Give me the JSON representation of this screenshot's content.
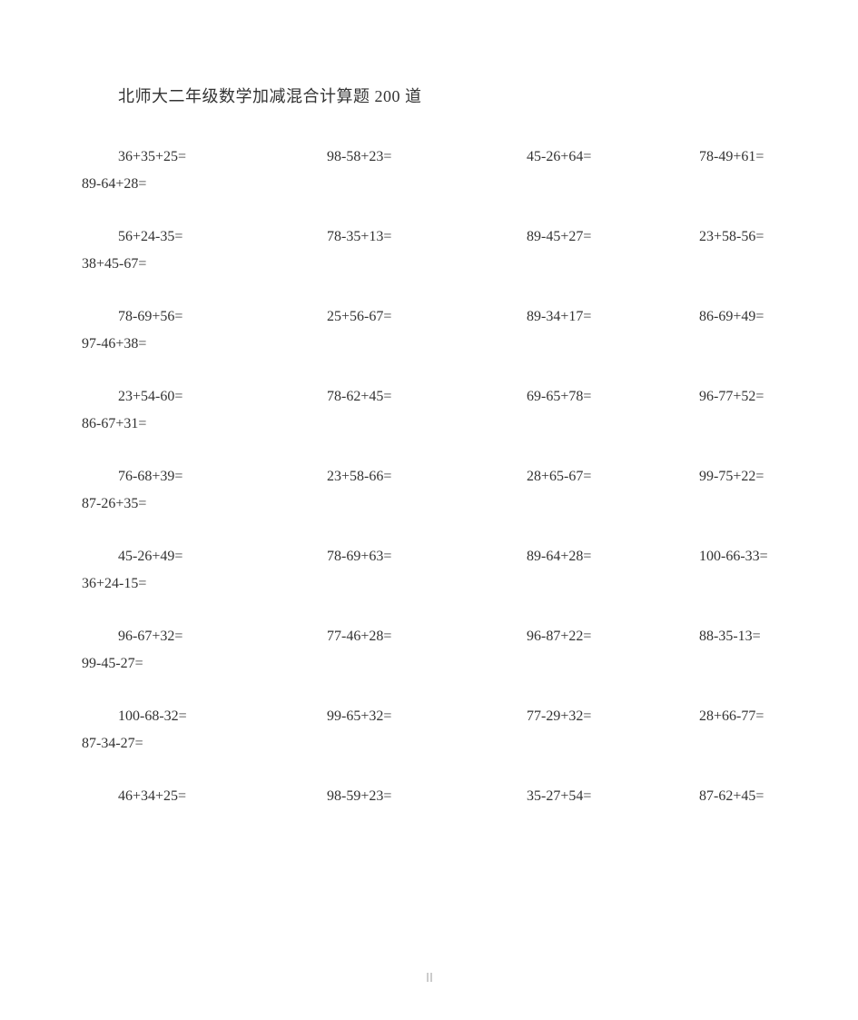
{
  "title": "北师大二年级数学加减混合计算题 200 道",
  "blocks": [
    {
      "c1": "36+35+25=",
      "c2": "98-58+23=",
      "c3": "45-26+64=",
      "c4": "78-49+61=",
      "extra": "89-64+28="
    },
    {
      "c1": "56+24-35=",
      "c2": "78-35+13=",
      "c3": "89-45+27=",
      "c4": "23+58-56=",
      "extra": "38+45-67="
    },
    {
      "c1": "78-69+56=",
      "c2": "25+56-67=",
      "c3": "89-34+17=",
      "c4": "86-69+49=",
      "extra": "97-46+38="
    },
    {
      "c1": "23+54-60=",
      "c2": "78-62+45=",
      "c3": "69-65+78=",
      "c4": "96-77+52=",
      "extra": "86-67+31="
    },
    {
      "c1": "76-68+39=",
      "c2": "23+58-66=",
      "c3": "28+65-67=",
      "c4": "99-75+22=",
      "extra": "87-26+35="
    },
    {
      "c1": "45-26+49=",
      "c2": "78-69+63=",
      "c3": "89-64+28=",
      "c4": "100-66-33=",
      "extra": "36+24-15="
    },
    {
      "c1": "96-67+32=",
      "c2": "77-46+28=",
      "c3": "96-87+22=",
      "c4": "88-35-13=",
      "extra": "99-45-27="
    },
    {
      "c1": "100-68-32=",
      "c2": "99-65+32=",
      "c3": "77-29+32=",
      "c4": "28+66-77=",
      "extra": "87-34-27="
    },
    {
      "c1": "46+34+25=",
      "c2": "98-59+23=",
      "c3": "35-27+54=",
      "c4": "87-62+45=",
      "extra": ""
    }
  ]
}
